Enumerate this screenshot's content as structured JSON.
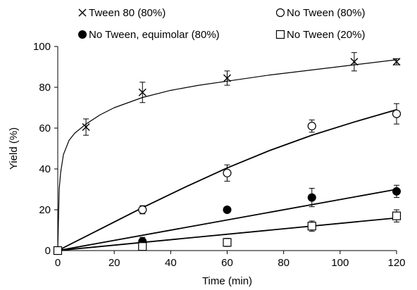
{
  "chart_data": {
    "type": "scatter",
    "xlabel": "Time (min)",
    "ylabel": "Yield (%)",
    "xlim": [
      0,
      120
    ],
    "ylim": [
      0,
      100
    ],
    "xticks": [
      "0",
      "20",
      "40",
      "60",
      "80",
      "100",
      "120"
    ],
    "yticks": [
      "0",
      "20",
      "40",
      "60",
      "80",
      "100"
    ],
    "grid": false,
    "legend_position": "top",
    "series": [
      {
        "name": "Tween 80 (80%)",
        "marker": "x",
        "points": [
          {
            "x": 0,
            "y": 0,
            "err": 0
          },
          {
            "x": 10,
            "y": 60.5,
            "err": 4
          },
          {
            "x": 30,
            "y": 77.5,
            "err": 5
          },
          {
            "x": 60,
            "y": 84.5,
            "err": 3.5
          },
          {
            "x": 105,
            "y": 92.5,
            "err": 4.5
          },
          {
            "x": 120,
            "y": 92.5,
            "err": 1.5
          }
        ],
        "fit": [
          [
            0,
            0
          ],
          [
            0.5,
            30
          ],
          [
            1,
            38
          ],
          [
            2,
            47
          ],
          [
            4,
            54
          ],
          [
            6,
            57.5
          ],
          [
            10,
            62
          ],
          [
            15,
            66.5
          ],
          [
            20,
            70
          ],
          [
            30,
            75
          ],
          [
            40,
            78.5
          ],
          [
            50,
            81
          ],
          [
            60,
            83
          ],
          [
            75,
            86
          ],
          [
            90,
            88.5
          ],
          [
            105,
            91
          ],
          [
            120,
            93.5
          ]
        ]
      },
      {
        "name": "No Tween (80%)",
        "marker": "circle-open",
        "points": [
          {
            "x": 0,
            "y": 0,
            "err": 0
          },
          {
            "x": 30,
            "y": 20,
            "err": 2
          },
          {
            "x": 60,
            "y": 38,
            "err": 4
          },
          {
            "x": 90,
            "y": 61,
            "err": 3
          },
          {
            "x": 120,
            "y": 67,
            "err": 5
          }
        ],
        "fit": [
          [
            0,
            0
          ],
          [
            15,
            10.5
          ],
          [
            30,
            21
          ],
          [
            45,
            31
          ],
          [
            60,
            40.5
          ],
          [
            75,
            49
          ],
          [
            90,
            56.5
          ],
          [
            105,
            63
          ],
          [
            120,
            69
          ]
        ]
      },
      {
        "name": "No Tween, equimolar (80%)",
        "marker": "circle-filled",
        "points": [
          {
            "x": 0,
            "y": 0,
            "err": 0
          },
          {
            "x": 30,
            "y": 4.5,
            "err": 2
          },
          {
            "x": 60,
            "y": 20,
            "err": 0
          },
          {
            "x": 90,
            "y": 26,
            "err": 4.5
          },
          {
            "x": 120,
            "y": 29,
            "err": 3
          }
        ],
        "fit": [
          [
            0,
            0
          ],
          [
            120,
            30
          ]
        ]
      },
      {
        "name": "No Tween (20%)",
        "marker": "square-open",
        "points": [
          {
            "x": 0,
            "y": 0,
            "err": 0
          },
          {
            "x": 30,
            "y": 2,
            "err": 2
          },
          {
            "x": 60,
            "y": 4,
            "err": 2
          },
          {
            "x": 90,
            "y": 12,
            "err": 2.5
          },
          {
            "x": 120,
            "y": 17,
            "err": 3
          }
        ],
        "fit": [
          [
            0,
            0
          ],
          [
            120,
            16
          ]
        ]
      }
    ]
  }
}
